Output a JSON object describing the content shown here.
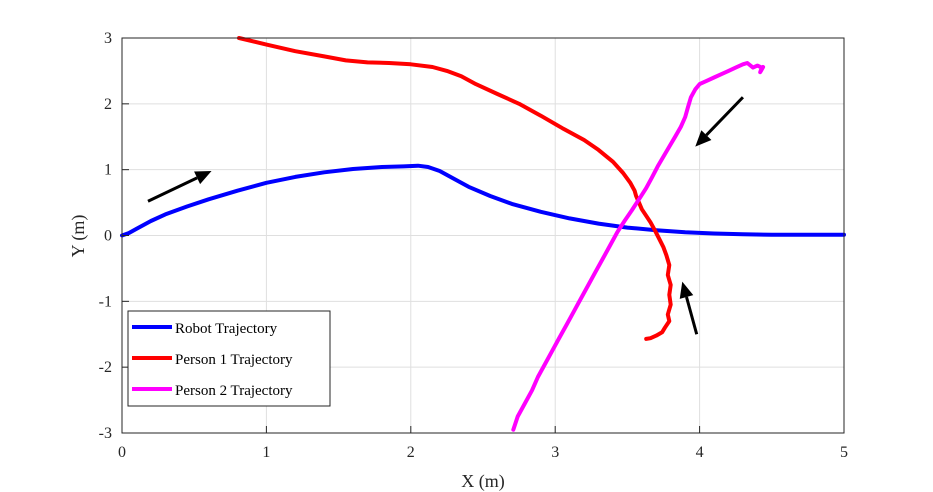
{
  "chart_data": {
    "type": "line",
    "xlabel": "X (m)",
    "ylabel": "Y (m)",
    "xlim": [
      0,
      5
    ],
    "ylim": [
      -3,
      3
    ],
    "xticks": [
      "0",
      "1",
      "2",
      "3",
      "4",
      "5"
    ],
    "yticks": [
      "-3",
      "-2",
      "-1",
      "0",
      "1",
      "2",
      "3"
    ],
    "grid": true,
    "legend_position": "bottom-left",
    "series": [
      {
        "name": "Robot Trajectory",
        "color": "#0000ff",
        "x": [
          0,
          0.05,
          0.1,
          0.2,
          0.3,
          0.45,
          0.6,
          0.8,
          1.0,
          1.2,
          1.4,
          1.6,
          1.8,
          1.95,
          2.05,
          2.12,
          2.2,
          2.3,
          2.4,
          2.55,
          2.7,
          2.9,
          3.1,
          3.3,
          3.5,
          3.7,
          3.9,
          4.1,
          4.3,
          4.5,
          4.7,
          5.0
        ],
        "y": [
          0,
          0.04,
          0.1,
          0.22,
          0.32,
          0.44,
          0.55,
          0.68,
          0.8,
          0.89,
          0.96,
          1.01,
          1.04,
          1.05,
          1.06,
          1.04,
          0.98,
          0.86,
          0.74,
          0.6,
          0.48,
          0.36,
          0.26,
          0.18,
          0.12,
          0.08,
          0.05,
          0.03,
          0.02,
          0.01,
          0.01,
          0.01
        ]
      },
      {
        "name": "Person 1 Trajectory",
        "color": "#ff0000",
        "x": [
          0.81,
          1.0,
          1.2,
          1.4,
          1.55,
          1.7,
          1.85,
          2.0,
          2.15,
          2.25,
          2.35,
          2.45,
          2.6,
          2.75,
          2.9,
          3.05,
          3.2,
          3.3,
          3.4,
          3.47,
          3.52,
          3.55,
          3.56,
          3.58,
          3.6,
          3.63,
          3.66,
          3.69,
          3.72,
          3.75,
          3.77,
          3.79,
          3.78,
          3.8,
          3.79,
          3.8,
          3.78,
          3.79,
          3.76,
          3.74,
          3.7,
          3.66,
          3.63
        ],
        "y": [
          3.0,
          2.9,
          2.8,
          2.72,
          2.66,
          2.63,
          2.62,
          2.6,
          2.56,
          2.5,
          2.42,
          2.3,
          2.15,
          2.0,
          1.82,
          1.63,
          1.45,
          1.3,
          1.12,
          0.95,
          0.8,
          0.68,
          0.6,
          0.5,
          0.4,
          0.3,
          0.2,
          0.08,
          -0.05,
          -0.18,
          -0.3,
          -0.45,
          -0.6,
          -0.75,
          -0.9,
          -1.05,
          -1.2,
          -1.3,
          -1.4,
          -1.47,
          -1.52,
          -1.56,
          -1.57
        ]
      },
      {
        "name": "Person 2 Trajectory",
        "color": "#ff00ff",
        "x": [
          2.71,
          2.74,
          2.79,
          2.84,
          2.88,
          2.93,
          2.98,
          3.03,
          3.08,
          3.13,
          3.18,
          3.23,
          3.28,
          3.33,
          3.38,
          3.43,
          3.48,
          3.53,
          3.58,
          3.63,
          3.67,
          3.71,
          3.75,
          3.79,
          3.83,
          3.87,
          3.9,
          3.92,
          3.94,
          3.97,
          4.0,
          4.05,
          4.1,
          4.15,
          4.2,
          4.25,
          4.3,
          4.33,
          4.37,
          4.4,
          4.43,
          4.42,
          4.44
        ],
        "y": [
          -2.95,
          -2.75,
          -2.55,
          -2.35,
          -2.15,
          -1.95,
          -1.75,
          -1.55,
          -1.35,
          -1.15,
          -0.95,
          -0.75,
          -0.55,
          -0.35,
          -0.15,
          0.05,
          0.22,
          0.38,
          0.55,
          0.72,
          0.88,
          1.05,
          1.2,
          1.35,
          1.5,
          1.65,
          1.8,
          1.95,
          2.1,
          2.22,
          2.3,
          2.35,
          2.4,
          2.45,
          2.5,
          2.55,
          2.6,
          2.62,
          2.55,
          2.58,
          2.55,
          2.48,
          2.56
        ]
      }
    ],
    "arrows": [
      {
        "from": [
          0.18,
          0.52
        ],
        "to": [
          0.62,
          0.98
        ]
      },
      {
        "from": [
          4.3,
          2.1
        ],
        "to": [
          3.97,
          1.35
        ]
      },
      {
        "from": [
          3.98,
          -1.5
        ],
        "to": [
          3.88,
          -0.7
        ]
      }
    ]
  }
}
